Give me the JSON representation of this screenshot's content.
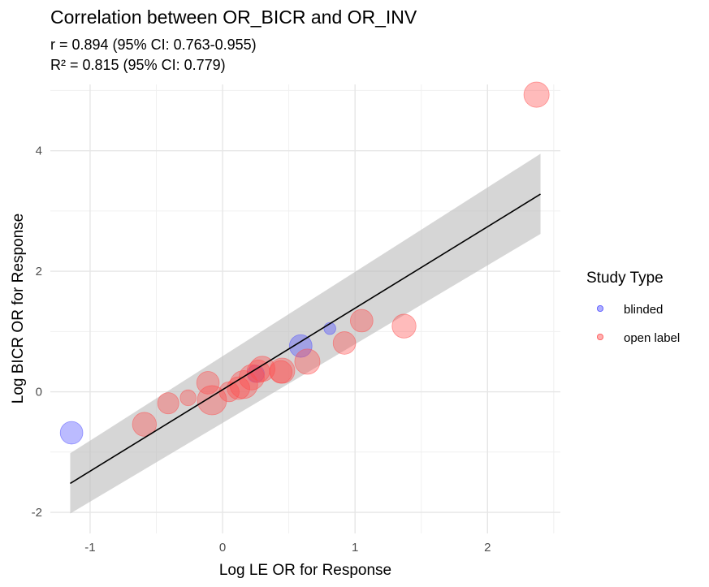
{
  "chart_data": {
    "type": "scatter",
    "title": "Correlation between OR_BICR and OR_INV",
    "subtitle_lines": [
      "r = 0.894 (95% CI: 0.763-0.955)",
      "R² = 0.815 (95% CI: 0.779)"
    ],
    "xlabel": "Log LE OR for Response",
    "ylabel": "Log BICR OR for Response",
    "xlim": [
      -1.3,
      2.55
    ],
    "ylim": [
      -2.35,
      5.1
    ],
    "x_ticks": [
      -1,
      0,
      1,
      2
    ],
    "y_ticks": [
      -2,
      0,
      2,
      4
    ],
    "grid": true,
    "legend": {
      "title": "Study Type",
      "placement": "right",
      "entries": [
        {
          "name": "blinded",
          "color": "#4d4dff"
        },
        {
          "name": "open label",
          "color": "#ff4d4d"
        }
      ]
    },
    "fit": {
      "x": [
        -1.15,
        2.4
      ],
      "y": [
        -1.52,
        3.28
      ],
      "ci_lower": [
        -2.02,
        2.62
      ],
      "ci_upper": [
        -1.02,
        3.95
      ]
    },
    "series": [
      {
        "name": "blinded",
        "color": "#4d4dff",
        "points": [
          {
            "x": -1.14,
            "y": -0.68,
            "size": 6
          },
          {
            "x": 0.59,
            "y": 0.76,
            "size": 6
          },
          {
            "x": 0.81,
            "y": 1.05,
            "size": 2
          },
          {
            "x": 0.25,
            "y": 0.3,
            "size": 4
          }
        ]
      },
      {
        "name": "open label",
        "color": "#ff4d4d",
        "points": [
          {
            "x": 2.37,
            "y": 4.93,
            "size": 7
          },
          {
            "x": 1.37,
            "y": 1.09,
            "size": 6.5
          },
          {
            "x": 1.05,
            "y": 1.18,
            "size": 6
          },
          {
            "x": 0.92,
            "y": 0.81,
            "size": 6
          },
          {
            "x": 0.64,
            "y": 0.5,
            "size": 7
          },
          {
            "x": 0.45,
            "y": 0.35,
            "size": 7
          },
          {
            "x": 0.44,
            "y": 0.33,
            "size": 6
          },
          {
            "x": 0.3,
            "y": 0.38,
            "size": 7
          },
          {
            "x": 0.27,
            "y": 0.34,
            "size": 6
          },
          {
            "x": 0.22,
            "y": 0.24,
            "size": 7
          },
          {
            "x": 0.16,
            "y": 0.12,
            "size": 8
          },
          {
            "x": 0.12,
            "y": 0.06,
            "size": 6
          },
          {
            "x": 0.05,
            "y": 0.0,
            "size": 5
          },
          {
            "x": -0.08,
            "y": -0.14,
            "size": 8.5
          },
          {
            "x": -0.11,
            "y": 0.15,
            "size": 6
          },
          {
            "x": -0.26,
            "y": -0.1,
            "size": 3.5
          },
          {
            "x": -0.41,
            "y": -0.19,
            "size": 5.5
          },
          {
            "x": -0.59,
            "y": -0.54,
            "size": 6.5
          }
        ]
      }
    ]
  }
}
